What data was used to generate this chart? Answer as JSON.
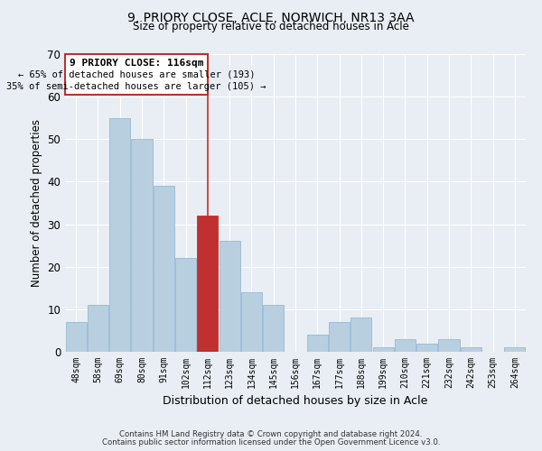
{
  "title": "9, PRIORY CLOSE, ACLE, NORWICH, NR13 3AA",
  "subtitle": "Size of property relative to detached houses in Acle",
  "xlabel": "Distribution of detached houses by size in Acle",
  "ylabel": "Number of detached properties",
  "bar_labels": [
    "48sqm",
    "58sqm",
    "69sqm",
    "80sqm",
    "91sqm",
    "102sqm",
    "112sqm",
    "123sqm",
    "134sqm",
    "145sqm",
    "156sqm",
    "167sqm",
    "177sqm",
    "188sqm",
    "199sqm",
    "210sqm",
    "221sqm",
    "232sqm",
    "242sqm",
    "253sqm",
    "264sqm"
  ],
  "bar_values": [
    7,
    11,
    55,
    50,
    39,
    22,
    32,
    26,
    14,
    11,
    0,
    4,
    7,
    8,
    1,
    3,
    2,
    3,
    1,
    0,
    1
  ],
  "bar_color_normal": "#b8cfe0",
  "bar_color_edge": "#9ab8d0",
  "bar_color_highlight": "#c03030",
  "highlight_index": 6,
  "ylim": [
    0,
    70
  ],
  "yticks": [
    0,
    10,
    20,
    30,
    40,
    50,
    60,
    70
  ],
  "annotation_title": "9 PRIORY CLOSE: 116sqm",
  "annotation_line1": "← 65% of detached houses are smaller (193)",
  "annotation_line2": "35% of semi-detached houses are larger (105) →",
  "footer1": "Contains HM Land Registry data © Crown copyright and database right 2024.",
  "footer2": "Contains public sector information licensed under the Open Government Licence v3.0.",
  "background_color": "#e8eef4"
}
